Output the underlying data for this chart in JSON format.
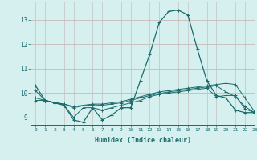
{
  "xlabel": "Humidex (Indice chaleur)",
  "xlim": [
    -0.5,
    23
  ],
  "ylim": [
    8.7,
    13.75
  ],
  "xticks": [
    0,
    1,
    2,
    3,
    4,
    5,
    6,
    7,
    8,
    9,
    10,
    11,
    12,
    13,
    14,
    15,
    16,
    17,
    18,
    19,
    20,
    21,
    22,
    23
  ],
  "yticks": [
    9,
    10,
    11,
    12,
    13
  ],
  "bg_color": "#d6f0f0",
  "line_color": "#1a6b6b",
  "grid_color_h": "#c8b8b8",
  "grid_color_v": "#c8c8c8",
  "line1": [
    10.3,
    9.7,
    9.6,
    9.5,
    8.9,
    8.8,
    9.4,
    8.9,
    9.1,
    9.4,
    9.4,
    10.5,
    11.6,
    12.9,
    13.35,
    13.4,
    13.2,
    11.8,
    10.5,
    9.9,
    9.8,
    9.3,
    9.2,
    9.2
  ],
  "line2": [
    10.1,
    9.7,
    9.6,
    9.55,
    9.45,
    9.5,
    9.55,
    9.55,
    9.6,
    9.65,
    9.75,
    9.85,
    9.95,
    10.05,
    10.1,
    10.15,
    10.2,
    10.25,
    10.3,
    10.35,
    10.4,
    10.35,
    9.8,
    9.25
  ],
  "line3": [
    9.8,
    9.7,
    9.62,
    9.55,
    9.4,
    9.48,
    9.52,
    9.5,
    9.55,
    9.6,
    9.7,
    9.8,
    9.9,
    9.98,
    10.05,
    10.1,
    10.15,
    10.2,
    10.25,
    10.3,
    10.05,
    9.85,
    9.45,
    9.2
  ],
  "line4": [
    9.7,
    9.7,
    9.6,
    9.5,
    9.0,
    9.4,
    9.4,
    9.3,
    9.4,
    9.5,
    9.6,
    9.7,
    9.85,
    9.95,
    10.0,
    10.05,
    10.1,
    10.15,
    10.2,
    9.85,
    9.9,
    9.9,
    9.35,
    9.2
  ]
}
